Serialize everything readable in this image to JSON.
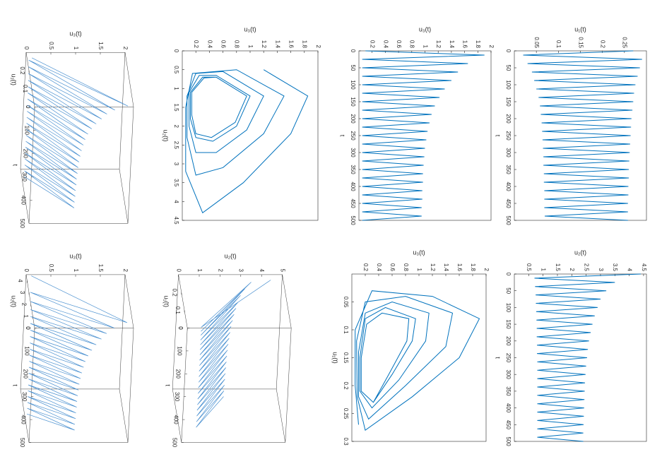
{
  "chart_data": [
    {
      "type": "line",
      "xlabel": "t",
      "ylabel": "u₁(t)",
      "color": "#0072bd",
      "xlim": [
        0,
        500
      ],
      "xticks": [
        0,
        50,
        100,
        150,
        200,
        250,
        300,
        350,
        400,
        450,
        500
      ],
      "ylim": [
        0,
        0.3
      ],
      "yticks": [
        0.05,
        0.1,
        0.15,
        0.2,
        0.25
      ],
      "x": [
        0,
        12.5,
        25,
        37.5,
        50,
        62.5,
        75,
        87.5,
        100,
        112.5,
        125,
        137.5,
        150,
        162.5,
        175,
        187.5,
        200,
        212.5,
        225,
        237.5,
        250,
        262.5,
        275,
        287.5,
        300,
        312.5,
        325,
        337.5,
        350,
        362.5,
        375,
        387.5,
        400,
        412.5,
        425,
        437.5,
        450,
        462.5,
        475,
        487.5,
        500
      ],
      "values": [
        0.27,
        0.02,
        0.29,
        0.03,
        0.285,
        0.04,
        0.28,
        0.045,
        0.275,
        0.05,
        0.272,
        0.055,
        0.27,
        0.058,
        0.268,
        0.06,
        0.266,
        0.062,
        0.265,
        0.063,
        0.264,
        0.064,
        0.263,
        0.065,
        0.262,
        0.066,
        0.261,
        0.066,
        0.26,
        0.067,
        0.26,
        0.067,
        0.259,
        0.068,
        0.259,
        0.068,
        0.258,
        0.068,
        0.258,
        0.069,
        0.258
      ]
    },
    {
      "type": "line",
      "xlabel": "t",
      "ylabel": "u₃(t)",
      "color": "#0072bd",
      "xlim": [
        0,
        500
      ],
      "xticks": [
        0,
        50,
        100,
        150,
        200,
        250,
        300,
        350,
        400,
        450,
        500
      ],
      "ylim": [
        0,
        2
      ],
      "yticks": [
        0.2,
        0.4,
        0.6,
        0.8,
        1,
        1.2,
        1.4,
        1.6,
        1.8,
        2
      ],
      "x": [
        0,
        12.5,
        25,
        37.5,
        50,
        62.5,
        75,
        87.5,
        100,
        112.5,
        125,
        137.5,
        150,
        162.5,
        175,
        187.5,
        200,
        212.5,
        225,
        237.5,
        250,
        262.5,
        275,
        287.5,
        300,
        312.5,
        325,
        337.5,
        350,
        362.5,
        375,
        387.5,
        400,
        412.5,
        425,
        437.5,
        450,
        462.5,
        475,
        487.5,
        500
      ],
      "values": [
        0.1,
        1.9,
        0.05,
        1.65,
        0.05,
        1.5,
        0.05,
        1.4,
        0.05,
        1.3,
        0.05,
        1.22,
        0.05,
        1.15,
        0.05,
        1.1,
        0.05,
        1.07,
        0.05,
        1.04,
        0.05,
        1.02,
        0.05,
        1.0,
        0.05,
        0.99,
        0.05,
        0.98,
        0.05,
        0.97,
        0.05,
        0.97,
        0.05,
        0.96,
        0.05,
        0.96,
        0.05,
        0.95,
        0.05,
        0.95,
        0.05
      ]
    },
    {
      "type": "line",
      "xlabel": "u₂(t)",
      "ylabel": "u₃(t)",
      "color": "#0072bd",
      "xlim": [
        0,
        4.5
      ],
      "xticks": [
        0,
        0.5,
        1,
        1.5,
        2,
        2.5,
        3,
        3.5,
        4,
        4.5
      ],
      "ylim": [
        0,
        2
      ],
      "yticks": [
        0.2,
        0.4,
        0.6,
        0.8,
        1,
        1.2,
        1.4,
        1.6,
        1.8,
        2
      ],
      "x": [
        0.5,
        1.2,
        2.2,
        3.5,
        4.3,
        3.2,
        1.5,
        0.6,
        0.5,
        1.2,
        2.2,
        3.1,
        3.3,
        2.3,
        1.2,
        0.6,
        0.55,
        1.2,
        2.1,
        2.7,
        2.7,
        2.0,
        1.1,
        0.65,
        0.65,
        1.2,
        2.0,
        2.4,
        2.3,
        1.8,
        1.1,
        0.7,
        0.7,
        1.2,
        1.9,
        2.3,
        2.2,
        1.7,
        1.1,
        0.72,
        0.7
      ],
      "values": [
        1.2,
        1.85,
        1.6,
        0.9,
        0.3,
        0.05,
        0.05,
        0.15,
        0.8,
        1.5,
        1.2,
        0.6,
        0.2,
        0.07,
        0.07,
        0.2,
        0.6,
        1.2,
        0.95,
        0.5,
        0.2,
        0.1,
        0.1,
        0.25,
        0.5,
        1.0,
        0.8,
        0.45,
        0.2,
        0.12,
        0.12,
        0.3,
        0.5,
        0.95,
        0.78,
        0.43,
        0.2,
        0.14,
        0.14,
        0.32,
        0.5
      ]
    },
    {
      "type": "line3d",
      "xlabel": "t",
      "ylabel": "u₁(t)",
      "zlabel": "u₃(t)",
      "color": "#4a90d0",
      "xlim": [
        0,
        500
      ],
      "xticks": [
        0,
        100,
        200,
        300,
        400,
        500
      ],
      "ylim": [
        0,
        0.3
      ],
      "yticks": [
        0,
        0.1,
        0.2
      ],
      "zlim": [
        0,
        2
      ],
      "zticks": [
        0,
        0.5,
        1,
        1.5,
        2
      ],
      "x": [
        0,
        12.5,
        25,
        37.5,
        50,
        62.5,
        75,
        87.5,
        100,
        112.5,
        125,
        137.5,
        150,
        162.5,
        175,
        187.5,
        200,
        212.5,
        225,
        237.5,
        250,
        262.5,
        275,
        287.5,
        300,
        312.5,
        325,
        337.5,
        350,
        362.5,
        375,
        387.5,
        400,
        412.5,
        425,
        437.5,
        450,
        462.5,
        475,
        487.5,
        500
      ],
      "y": [
        0.27,
        0.02,
        0.29,
        0.03,
        0.285,
        0.04,
        0.28,
        0.045,
        0.275,
        0.05,
        0.272,
        0.055,
        0.27,
        0.058,
        0.268,
        0.06,
        0.266,
        0.062,
        0.265,
        0.063,
        0.264,
        0.064,
        0.263,
        0.065,
        0.262,
        0.066,
        0.261,
        0.066,
        0.26,
        0.067,
        0.26,
        0.067,
        0.259,
        0.068,
        0.259,
        0.068,
        0.258,
        0.068,
        0.258,
        0.069,
        0.258
      ],
      "z": [
        0.1,
        1.9,
        0.05,
        1.65,
        0.05,
        1.5,
        0.05,
        1.4,
        0.05,
        1.3,
        0.05,
        1.22,
        0.05,
        1.15,
        0.05,
        1.1,
        0.05,
        1.07,
        0.05,
        1.04,
        0.05,
        1.02,
        0.05,
        1.0,
        0.05,
        0.99,
        0.05,
        0.98,
        0.05,
        0.97,
        0.05,
        0.97,
        0.05,
        0.96,
        0.05,
        0.96,
        0.05,
        0.95,
        0.05,
        0.95,
        0.05
      ]
    },
    {
      "type": "line",
      "xlabel": "t",
      "ylabel": "u₂(t)",
      "color": "#0072bd",
      "xlim": [
        0,
        500
      ],
      "xticks": [
        0,
        50,
        100,
        150,
        200,
        250,
        300,
        350,
        400,
        450,
        500
      ],
      "ylim": [
        0,
        4.6
      ],
      "yticks": [
        0.5,
        1,
        1.5,
        2,
        2.5,
        3,
        3.5,
        4,
        4.5
      ],
      "x": [
        0,
        12.5,
        25,
        37.5,
        50,
        62.5,
        75,
        87.5,
        100,
        112.5,
        125,
        137.5,
        150,
        162.5,
        175,
        187.5,
        200,
        212.5,
        225,
        237.5,
        250,
        262.5,
        275,
        287.5,
        300,
        312.5,
        325,
        337.5,
        350,
        362.5,
        375,
        387.5,
        400,
        412.5,
        425,
        437.5,
        450,
        462.5,
        475,
        487.5,
        500
      ],
      "values": [
        4.4,
        0.7,
        3.5,
        0.72,
        3.2,
        0.74,
        3.0,
        0.75,
        2.9,
        0.76,
        2.8,
        0.77,
        2.72,
        0.78,
        2.66,
        0.78,
        2.6,
        0.79,
        2.56,
        0.79,
        2.53,
        0.8,
        2.5,
        0.8,
        2.48,
        0.8,
        2.46,
        0.8,
        2.45,
        0.8,
        2.44,
        0.8,
        2.43,
        0.8,
        2.42,
        0.8,
        2.41,
        0.8,
        2.4,
        0.8,
        2.4
      ]
    },
    {
      "type": "line",
      "xlabel": "u₁(t)",
      "ylabel": "u₃(t)",
      "color": "#0072bd",
      "xlim": [
        0,
        0.3
      ],
      "xticks": [
        0.05,
        0.1,
        0.15,
        0.2,
        0.25,
        0.3
      ],
      "ylim": [
        0,
        2
      ],
      "yticks": [
        0.2,
        0.4,
        0.6,
        0.8,
        1,
        1.2,
        1.4,
        1.6,
        1.8,
        2
      ],
      "x": [
        0.27,
        0.2,
        0.1,
        0.03,
        0.04,
        0.08,
        0.15,
        0.22,
        0.28,
        0.22,
        0.12,
        0.05,
        0.04,
        0.07,
        0.13,
        0.2,
        0.26,
        0.22,
        0.14,
        0.07,
        0.05,
        0.07,
        0.12,
        0.19,
        0.24,
        0.21,
        0.15,
        0.08,
        0.06,
        0.08,
        0.12,
        0.18,
        0.23,
        0.21,
        0.15,
        0.09,
        0.07,
        0.08,
        0.12,
        0.18,
        0.23
      ],
      "values": [
        0.1,
        0.05,
        0.05,
        0.3,
        1.2,
        1.9,
        1.6,
        0.9,
        0.2,
        0.08,
        0.07,
        0.2,
        0.8,
        1.5,
        1.4,
        0.8,
        0.25,
        0.1,
        0.1,
        0.2,
        0.6,
        1.15,
        1.1,
        0.7,
        0.3,
        0.12,
        0.12,
        0.2,
        0.5,
        0.95,
        0.9,
        0.6,
        0.32,
        0.14,
        0.14,
        0.22,
        0.45,
        0.85,
        0.82,
        0.55,
        0.32
      ]
    },
    {
      "type": "line3d",
      "xlabel": "t",
      "ylabel": "u₁(t)",
      "zlabel": "u₂(t)",
      "color": "#4a90d0",
      "xlim": [
        0,
        500
      ],
      "xticks": [
        0,
        100,
        200,
        300,
        400,
        500
      ],
      "ylim": [
        0,
        0.3
      ],
      "yticks": [
        0,
        0.1,
        0.2
      ],
      "zlim": [
        0,
        5
      ],
      "zticks": [
        0,
        1,
        2,
        3,
        4,
        5
      ],
      "x": [
        0,
        12.5,
        25,
        37.5,
        50,
        62.5,
        75,
        87.5,
        100,
        112.5,
        125,
        137.5,
        150,
        162.5,
        175,
        187.5,
        200,
        212.5,
        225,
        237.5,
        250,
        262.5,
        275,
        287.5,
        300,
        312.5,
        325,
        337.5,
        350,
        362.5,
        375,
        387.5,
        400,
        412.5,
        425,
        437.5,
        450,
        462.5,
        475,
        487.5,
        500
      ],
      "y": [
        0.27,
        0.02,
        0.29,
        0.03,
        0.285,
        0.04,
        0.28,
        0.045,
        0.275,
        0.05,
        0.272,
        0.055,
        0.27,
        0.058,
        0.268,
        0.06,
        0.266,
        0.062,
        0.265,
        0.063,
        0.264,
        0.064,
        0.263,
        0.065,
        0.262,
        0.066,
        0.261,
        0.066,
        0.26,
        0.067,
        0.26,
        0.067,
        0.259,
        0.068,
        0.259,
        0.068,
        0.258,
        0.068,
        0.258,
        0.069,
        0.258
      ],
      "z": [
        4.4,
        0.7,
        3.5,
        0.72,
        3.2,
        0.74,
        3.0,
        0.75,
        2.9,
        0.76,
        2.8,
        0.77,
        2.72,
        0.78,
        2.66,
        0.78,
        2.6,
        0.79,
        2.56,
        0.79,
        2.53,
        0.8,
        2.5,
        0.8,
        2.48,
        0.8,
        2.46,
        0.8,
        2.45,
        0.8,
        2.44,
        0.8,
        2.43,
        0.8,
        2.42,
        0.8,
        2.41,
        0.8,
        2.4,
        0.8,
        2.4
      ]
    },
    {
      "type": "line3d",
      "xlabel": "t",
      "ylabel": "u₂(t)",
      "zlabel": "u₃(t)",
      "color": "#4a90d0",
      "xlim": [
        0,
        500
      ],
      "xticks": [
        0,
        100,
        200,
        300,
        400,
        500
      ],
      "ylim": [
        0,
        4.5
      ],
      "yticks": [
        0,
        1,
        2,
        3,
        4
      ],
      "zlim": [
        0,
        2
      ],
      "zticks": [
        0,
        0.5,
        1,
        1.5,
        2
      ],
      "x": [
        0,
        12.5,
        25,
        37.5,
        50,
        62.5,
        75,
        87.5,
        100,
        112.5,
        125,
        137.5,
        150,
        162.5,
        175,
        187.5,
        200,
        212.5,
        225,
        237.5,
        250,
        262.5,
        275,
        287.5,
        300,
        312.5,
        325,
        337.5,
        350,
        362.5,
        375,
        387.5,
        400,
        412.5,
        425,
        437.5,
        450,
        462.5,
        475,
        487.5,
        500
      ],
      "y": [
        4.4,
        0.7,
        3.5,
        0.72,
        3.2,
        0.74,
        3.0,
        0.75,
        2.9,
        0.76,
        2.8,
        0.77,
        2.72,
        0.78,
        2.66,
        0.78,
        2.6,
        0.79,
        2.56,
        0.79,
        2.53,
        0.8,
        2.5,
        0.8,
        2.48,
        0.8,
        2.46,
        0.8,
        2.45,
        0.8,
        2.44,
        0.8,
        2.43,
        0.8,
        2.42,
        0.8,
        2.41,
        0.8,
        2.4,
        0.8,
        2.4
      ],
      "z": [
        0.1,
        1.9,
        0.05,
        1.65,
        0.05,
        1.5,
        0.05,
        1.4,
        0.05,
        1.3,
        0.05,
        1.22,
        0.05,
        1.15,
        0.05,
        1.1,
        0.05,
        1.07,
        0.05,
        1.04,
        0.05,
        1.02,
        0.05,
        1.0,
        0.05,
        0.99,
        0.05,
        0.98,
        0.05,
        0.97,
        0.05,
        0.97,
        0.05,
        0.96,
        0.05,
        0.96,
        0.05,
        0.95,
        0.05,
        0.95,
        0.05
      ]
    }
  ]
}
